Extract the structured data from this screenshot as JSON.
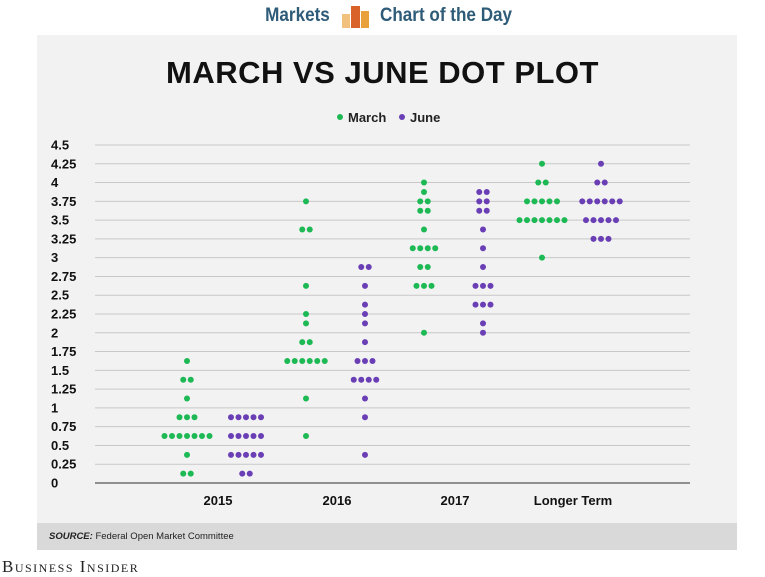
{
  "header": {
    "left_label": "Markets",
    "right_label": "Chart of the Day",
    "logo_icon": "bar-chart-icon",
    "logo_colors": [
      "#e9a23b",
      "#d9622b",
      "#f1c27d"
    ]
  },
  "source": {
    "label": "SOURCE:",
    "text": "Federal Open Market Committee"
  },
  "footer": {
    "brand": "Business Insider"
  },
  "chart_data": {
    "type": "scatter",
    "title": "MARCH VS JUNE DOT PLOT",
    "legend_position": "top-center",
    "grid": true,
    "ylim": [
      0,
      4.5
    ],
    "yticks": [
      "0",
      "0.25",
      "0.5",
      "0.75",
      "1",
      "1.25",
      "1.5",
      "1.75",
      "2",
      "2.25",
      "2.5",
      "2.75",
      "3",
      "3.25",
      "3.5",
      "3.75",
      "4",
      "4.25",
      "4.5"
    ],
    "categories": [
      "2015",
      "2016",
      "2017",
      "Longer Term"
    ],
    "series": [
      {
        "name": "March",
        "color": "#1db954",
        "points": [
          {
            "category": "2015",
            "y": 1.625,
            "count": 1
          },
          {
            "category": "2015",
            "y": 1.375,
            "count": 2
          },
          {
            "category": "2015",
            "y": 1.125,
            "count": 1
          },
          {
            "category": "2015",
            "y": 0.875,
            "count": 3
          },
          {
            "category": "2015",
            "y": 0.625,
            "count": 7
          },
          {
            "category": "2015",
            "y": 0.375,
            "count": 1
          },
          {
            "category": "2015",
            "y": 0.125,
            "count": 2
          },
          {
            "category": "2016",
            "y": 3.75,
            "count": 1
          },
          {
            "category": "2016",
            "y": 3.375,
            "count": 2
          },
          {
            "category": "2016",
            "y": 2.625,
            "count": 1
          },
          {
            "category": "2016",
            "y": 2.25,
            "count": 1
          },
          {
            "category": "2016",
            "y": 2.125,
            "count": 1
          },
          {
            "category": "2016",
            "y": 1.875,
            "count": 2
          },
          {
            "category": "2016",
            "y": 1.625,
            "count": 6
          },
          {
            "category": "2016",
            "y": 1.125,
            "count": 1
          },
          {
            "category": "2016",
            "y": 0.625,
            "count": 1
          },
          {
            "category": "2017",
            "y": 4.0,
            "count": 1
          },
          {
            "category": "2017",
            "y": 3.875,
            "count": 1
          },
          {
            "category": "2017",
            "y": 3.75,
            "count": 2
          },
          {
            "category": "2017",
            "y": 3.625,
            "count": 2
          },
          {
            "category": "2017",
            "y": 3.375,
            "count": 1
          },
          {
            "category": "2017",
            "y": 3.125,
            "count": 4
          },
          {
            "category": "2017",
            "y": 2.875,
            "count": 2
          },
          {
            "category": "2017",
            "y": 2.625,
            "count": 3
          },
          {
            "category": "2017",
            "y": 2.0,
            "count": 1
          },
          {
            "category": "Longer Term",
            "y": 4.25,
            "count": 1
          },
          {
            "category": "Longer Term",
            "y": 4.0,
            "count": 2
          },
          {
            "category": "Longer Term",
            "y": 3.75,
            "count": 5
          },
          {
            "category": "Longer Term",
            "y": 3.5,
            "count": 7
          },
          {
            "category": "Longer Term",
            "y": 3.0,
            "count": 1
          }
        ]
      },
      {
        "name": "June",
        "color": "#6a3fb5",
        "points": [
          {
            "category": "2015",
            "y": 0.875,
            "count": 5
          },
          {
            "category": "2015",
            "y": 0.625,
            "count": 5
          },
          {
            "category": "2015",
            "y": 0.375,
            "count": 5
          },
          {
            "category": "2015",
            "y": 0.125,
            "count": 2
          },
          {
            "category": "2016",
            "y": 2.875,
            "count": 2
          },
          {
            "category": "2016",
            "y": 2.625,
            "count": 1
          },
          {
            "category": "2016",
            "y": 2.375,
            "count": 1
          },
          {
            "category": "2016",
            "y": 2.25,
            "count": 1
          },
          {
            "category": "2016",
            "y": 2.125,
            "count": 1
          },
          {
            "category": "2016",
            "y": 1.875,
            "count": 1
          },
          {
            "category": "2016",
            "y": 1.625,
            "count": 3
          },
          {
            "category": "2016",
            "y": 1.375,
            "count": 4
          },
          {
            "category": "2016",
            "y": 1.125,
            "count": 1
          },
          {
            "category": "2016",
            "y": 0.875,
            "count": 1
          },
          {
            "category": "2016",
            "y": 0.375,
            "count": 1
          },
          {
            "category": "2017",
            "y": 3.875,
            "count": 2
          },
          {
            "category": "2017",
            "y": 3.75,
            "count": 2
          },
          {
            "category": "2017",
            "y": 3.625,
            "count": 2
          },
          {
            "category": "2017",
            "y": 3.375,
            "count": 1
          },
          {
            "category": "2017",
            "y": 3.125,
            "count": 1
          },
          {
            "category": "2017",
            "y": 2.875,
            "count": 1
          },
          {
            "category": "2017",
            "y": 2.625,
            "count": 3
          },
          {
            "category": "2017",
            "y": 2.375,
            "count": 3
          },
          {
            "category": "2017",
            "y": 2.125,
            "count": 1
          },
          {
            "category": "2017",
            "y": 2.0,
            "count": 1
          },
          {
            "category": "Longer Term",
            "y": 4.25,
            "count": 1
          },
          {
            "category": "Longer Term",
            "y": 4.0,
            "count": 2
          },
          {
            "category": "Longer Term",
            "y": 3.75,
            "count": 6
          },
          {
            "category": "Longer Term",
            "y": 3.5,
            "count": 5
          },
          {
            "category": "Longer Term",
            "y": 3.25,
            "count": 3
          }
        ]
      }
    ]
  }
}
